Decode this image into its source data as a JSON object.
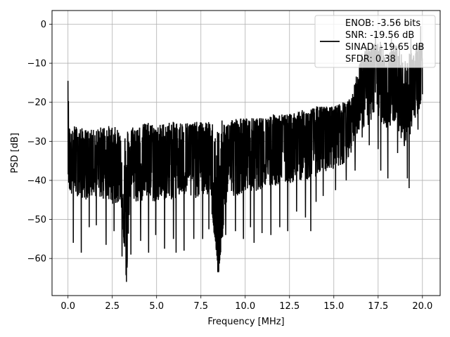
{
  "chart_data": {
    "type": "line",
    "xlabel": "Frequency [MHz]",
    "ylabel": "PSD [dB]",
    "xlim": [
      -0.9,
      21.0
    ],
    "ylim": [
      -69.5,
      3.5
    ],
    "x_ticks": [
      0.0,
      2.5,
      5.0,
      7.5,
      10.0,
      12.5,
      15.0,
      17.5,
      20.0
    ],
    "x_tick_labels": [
      "0.0",
      "2.5",
      "5.0",
      "7.5",
      "10.0",
      "12.5",
      "15.0",
      "17.5",
      "20.0"
    ],
    "y_ticks": [
      0,
      -10,
      -20,
      -30,
      -40,
      -50,
      -60
    ],
    "y_tick_labels": [
      "0",
      "−10",
      "−20",
      "−30",
      "−40",
      "−50",
      "−60"
    ],
    "grid": true,
    "legend_position": "top-right",
    "legend_entries": [
      "ENOB: -3.56 bits",
      "SNR: -19.56 dB",
      "SINAD: -19.65 dB",
      "SFDR: 0.38"
    ],
    "line_color": "#000000",
    "series": [
      {
        "x": [
          0.0,
          0.03,
          0.06,
          0.1,
          0.15,
          0.2,
          0.25,
          0.3,
          0.5,
          1.0,
          1.5,
          2.0,
          2.5,
          3.0,
          3.3,
          3.5,
          4.0,
          4.5,
          5.0,
          5.5,
          6.0,
          6.5,
          7.0,
          7.5,
          8.0,
          8.5,
          9.0,
          9.5,
          10.0,
          10.5,
          11.0,
          11.5,
          12.0,
          12.5,
          13.0,
          13.5,
          14.0,
          14.5,
          15.0,
          15.5,
          16.0,
          16.5,
          17.0,
          17.5,
          18.0,
          18.5,
          19.0,
          19.5,
          20.0
        ],
        "y": [
          -14.5,
          -23,
          -33,
          -27,
          -43,
          -28,
          -40,
          -31,
          -35,
          -33,
          -34,
          -32,
          -35,
          -34,
          -66,
          -33,
          -34,
          -32,
          -33,
          -34,
          -31,
          -33,
          -32,
          -31,
          -33,
          -63.5,
          -31,
          -32,
          -30,
          -31,
          -30,
          -29,
          -28,
          -29,
          -27,
          -28,
          -27,
          -26,
          -25,
          -24,
          -22,
          -16,
          -14,
          -12,
          -15,
          -16,
          -18,
          -17,
          -13
        ],
        "upper": [
          -14.5,
          -20,
          -26,
          -26,
          -27,
          -28,
          -27,
          -26,
          -26,
          -27,
          -27,
          -26,
          -26,
          -27,
          -26,
          -26,
          -26,
          -25,
          -26,
          -25,
          -25,
          -25,
          -25,
          -25,
          -25,
          -25,
          -24,
          -24,
          -24,
          -24,
          -24,
          -23,
          -23,
          -23,
          -22,
          -22,
          -21,
          -21,
          -21,
          -20,
          -19,
          -8,
          -5,
          -4,
          -6,
          -5,
          -9,
          -6,
          -4
        ],
        "lower": [
          -37,
          -42,
          -44,
          -43,
          -44,
          -45,
          -44,
          -43,
          -44,
          -45,
          -44,
          -45,
          -46,
          -46,
          -66,
          -45,
          -46,
          -45,
          -46,
          -45,
          -45,
          -44,
          -45,
          -44,
          -44,
          -63.5,
          -44,
          -44,
          -43,
          -43,
          -42,
          -42,
          -41,
          -41,
          -40,
          -40,
          -39,
          -38,
          -37,
          -36,
          -33,
          -27,
          -26,
          -24,
          -27,
          -25,
          -32,
          -26,
          -21
        ],
        "dips": [
          [
            0.3,
            -56
          ],
          [
            0.75,
            -58.5
          ],
          [
            1.2,
            -52
          ],
          [
            1.6,
            -51.5
          ],
          [
            2.15,
            -56.5
          ],
          [
            2.6,
            -53
          ],
          [
            3.05,
            -59.5
          ],
          [
            3.3,
            -66
          ],
          [
            3.55,
            -59
          ],
          [
            4.1,
            -55.5
          ],
          [
            4.55,
            -58.5
          ],
          [
            4.95,
            -54
          ],
          [
            5.45,
            -57.5
          ],
          [
            5.95,
            -55
          ],
          [
            6.1,
            -58.5
          ],
          [
            6.55,
            -58
          ],
          [
            7.1,
            -55
          ],
          [
            7.6,
            -55
          ],
          [
            7.95,
            -52.5
          ],
          [
            8.45,
            -63.5
          ],
          [
            8.9,
            -54
          ],
          [
            9.45,
            -53
          ],
          [
            9.9,
            -55
          ],
          [
            10.3,
            -52
          ],
          [
            10.5,
            -56
          ],
          [
            10.95,
            -53.5
          ],
          [
            11.45,
            -54
          ],
          [
            11.95,
            -52
          ],
          [
            12.4,
            -53
          ],
          [
            12.9,
            -48
          ],
          [
            13.4,
            -49.5
          ],
          [
            13.7,
            -53
          ],
          [
            14.0,
            -45.5
          ],
          [
            14.4,
            -44
          ],
          [
            15.1,
            -42.5
          ],
          [
            15.7,
            -40
          ],
          [
            16.2,
            -37.5
          ],
          [
            16.6,
            -29
          ],
          [
            17.0,
            -31
          ],
          [
            17.5,
            -32
          ],
          [
            17.65,
            -37.5
          ],
          [
            18.05,
            -39.5
          ],
          [
            18.6,
            -33
          ],
          [
            19.15,
            -39.5
          ],
          [
            19.25,
            -42
          ],
          [
            19.75,
            -27
          ]
        ],
        "spikes": [
          [
            0.0,
            -14.5
          ],
          [
            16.5,
            -10
          ],
          [
            16.9,
            -9.5
          ],
          [
            17.35,
            -2.5
          ],
          [
            17.8,
            -8
          ],
          [
            18.25,
            -3.5
          ],
          [
            18.7,
            -6
          ],
          [
            19.35,
            -3.5
          ],
          [
            19.9,
            -0.5
          ]
        ]
      }
    ]
  }
}
